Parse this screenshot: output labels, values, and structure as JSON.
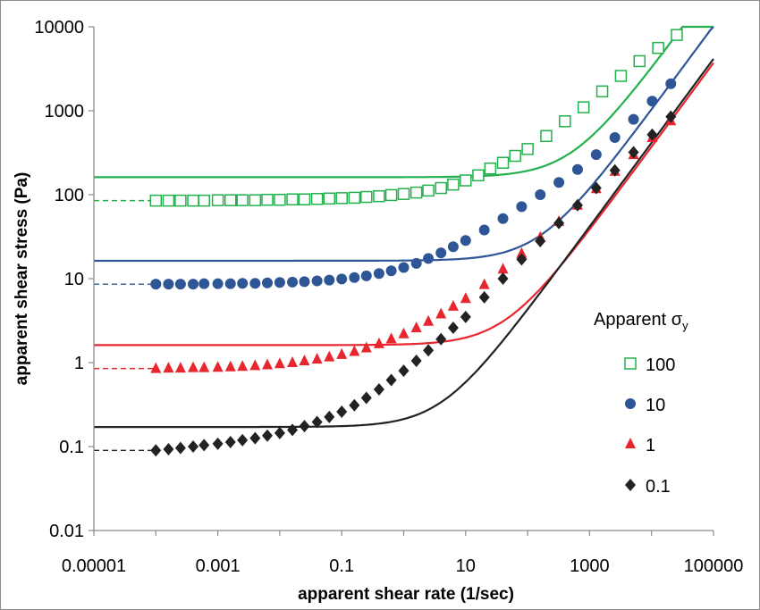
{
  "chart_data": {
    "type": "line",
    "xlabel": "apparent shear rate (1/sec)",
    "ylabel": "apparent shear stress (Pa)",
    "xscale": "log",
    "yscale": "log",
    "xlim": [
      1e-05,
      100000
    ],
    "ylim": [
      0.01,
      10000
    ],
    "x_tick_labels": [
      "0.00001",
      "0.001",
      "0.1",
      "10",
      "1000",
      "100000"
    ],
    "y_tick_labels": [
      "10000",
      "1000",
      "100",
      "10",
      "1",
      "0.1",
      "0.01"
    ],
    "legend_title": "Apparent σ",
    "legend_title_subscript": "y",
    "legend_position": "right",
    "grid": false,
    "series": [
      {
        "name": "100",
        "color": "#22b14c",
        "marker": "open-square",
        "x": [
          0.0001,
          0.00016,
          0.00025,
          0.0004,
          0.0006,
          0.001,
          0.0016,
          0.0025,
          0.004,
          0.0063,
          0.01,
          0.016,
          0.025,
          0.04,
          0.063,
          0.1,
          0.16,
          0.25,
          0.4,
          0.63,
          1,
          1.6,
          2.5,
          4,
          6.3,
          10,
          16,
          25,
          40,
          63,
          100,
          200,
          400,
          800,
          1600,
          3200,
          6400,
          12800,
          25600
        ],
        "values": [
          85,
          85,
          85,
          85,
          85,
          86,
          86,
          86,
          86,
          87,
          87,
          88,
          88,
          89,
          90,
          91,
          92,
          94,
          96,
          99,
          102,
          106,
          112,
          120,
          132,
          148,
          170,
          205,
          240,
          290,
          350,
          500,
          750,
          1100,
          1700,
          2600,
          3900,
          5600,
          8000
        ]
      },
      {
        "name": "10",
        "color": "#2e5596",
        "marker": "filled-circle",
        "x": [
          0.0001,
          0.00016,
          0.00025,
          0.0004,
          0.0006,
          0.001,
          0.0016,
          0.0025,
          0.004,
          0.0063,
          0.01,
          0.016,
          0.025,
          0.04,
          0.063,
          0.1,
          0.16,
          0.25,
          0.4,
          0.63,
          1,
          1.6,
          2.5,
          4,
          6.3,
          10,
          20,
          40,
          80,
          160,
          320,
          640,
          1280,
          2560,
          5120,
          10240,
          20480
        ],
        "values": [
          8.6,
          8.6,
          8.6,
          8.6,
          8.7,
          8.7,
          8.7,
          8.8,
          8.8,
          8.9,
          9,
          9.1,
          9.2,
          9.4,
          9.6,
          9.9,
          10.3,
          10.8,
          11.5,
          12.4,
          13.6,
          15.2,
          17.4,
          20.3,
          24,
          28.5,
          38,
          52,
          72,
          100,
          140,
          200,
          300,
          480,
          790,
          1300,
          2100
        ]
      },
      {
        "name": "1",
        "color": "#e8262d",
        "marker": "filled-triangle",
        "x": [
          0.0001,
          0.00016,
          0.00025,
          0.0004,
          0.0006,
          0.001,
          0.0016,
          0.0025,
          0.004,
          0.0063,
          0.01,
          0.016,
          0.025,
          0.04,
          0.063,
          0.1,
          0.16,
          0.25,
          0.4,
          0.63,
          1,
          1.6,
          2.5,
          4,
          6.3,
          10,
          20,
          40,
          80,
          160,
          320,
          640,
          1280,
          2560,
          5120,
          10240,
          20480
        ],
        "values": [
          0.85,
          0.86,
          0.86,
          0.87,
          0.87,
          0.88,
          0.89,
          0.9,
          0.92,
          0.94,
          0.97,
          1.0,
          1.05,
          1.1,
          1.17,
          1.25,
          1.36,
          1.5,
          1.68,
          1.92,
          2.2,
          2.6,
          3.1,
          3.8,
          4.7,
          5.8,
          8.5,
          13,
          20,
          31,
          48,
          75,
          118,
          190,
          300,
          480,
          760
        ]
      },
      {
        "name": "0.1",
        "color": "#222222",
        "marker": "filled-diamond",
        "x": [
          0.0001,
          0.00016,
          0.00025,
          0.0004,
          0.0006,
          0.001,
          0.0016,
          0.0025,
          0.004,
          0.0063,
          0.01,
          0.016,
          0.025,
          0.04,
          0.063,
          0.1,
          0.16,
          0.25,
          0.4,
          0.63,
          1,
          1.6,
          2.5,
          4,
          6.3,
          10,
          20,
          40,
          80,
          160,
          320,
          640,
          1280,
          2560,
          5120,
          10240,
          20480
        ],
        "values": [
          0.09,
          0.093,
          0.096,
          0.1,
          0.104,
          0.108,
          0.113,
          0.119,
          0.126,
          0.135,
          0.145,
          0.158,
          0.175,
          0.196,
          0.225,
          0.26,
          0.31,
          0.38,
          0.48,
          0.62,
          0.8,
          1.05,
          1.4,
          1.9,
          2.6,
          3.5,
          6,
          10,
          17,
          28,
          46,
          75,
          120,
          195,
          320,
          520,
          850
        ]
      }
    ]
  }
}
